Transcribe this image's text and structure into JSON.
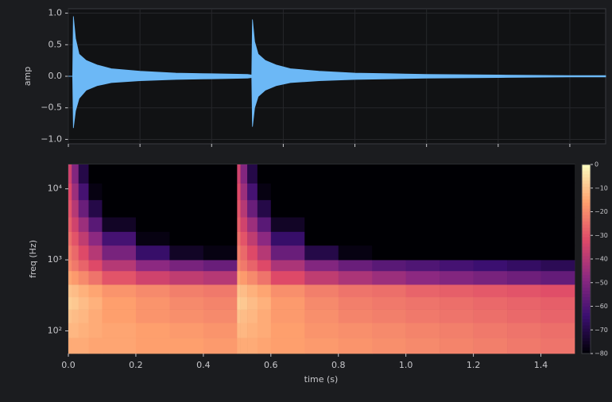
{
  "chart_data": [
    {
      "type": "area",
      "ylabel": "amp",
      "x": [
        0,
        0.012,
        0.014,
        0.02,
        0.03,
        0.05,
        0.08,
        0.12,
        0.2,
        0.3,
        0.4,
        0.5,
        0.512,
        0.514,
        0.52,
        0.53,
        0.55,
        0.58,
        0.62,
        0.7,
        0.8,
        0.9,
        1.0,
        1.2,
        1.4,
        1.5
      ],
      "series": [
        {
          "color": "#6cb8f6",
          "values": [
            0,
            0,
            0.95,
            0.6,
            0.35,
            0.25,
            0.18,
            0.12,
            0.08,
            0.05,
            0.04,
            0.03,
            0.02,
            0.9,
            0.55,
            0.35,
            0.25,
            0.18,
            0.12,
            0.08,
            0.05,
            0.04,
            0.03,
            0.02,
            0.01,
            0.01
          ]
        },
        {
          "color": "#6cb8f6",
          "values": [
            0,
            0,
            -0.82,
            -0.55,
            -0.35,
            -0.22,
            -0.15,
            -0.1,
            -0.07,
            -0.05,
            -0.04,
            -0.03,
            -0.02,
            -0.8,
            -0.5,
            -0.32,
            -0.22,
            -0.15,
            -0.1,
            -0.07,
            -0.05,
            -0.04,
            -0.03,
            -0.02,
            -0.01,
            -0.01
          ]
        }
      ],
      "xlim": [
        0,
        1.5
      ],
      "xticks": [
        0,
        0.2,
        0.4,
        0.6,
        0.8,
        1.0,
        1.2,
        1.4
      ],
      "ylim": [
        -1.07,
        1.07
      ],
      "yticks": [
        {
          "value": -1,
          "label": "−1.0"
        },
        {
          "value": -0.5,
          "label": "−0.5"
        },
        {
          "value": 0,
          "label": "0.0"
        },
        0.5,
        {
          "value": 1,
          "label": "1.0"
        }
      ],
      "grid": true
    },
    {
      "type": "heatmap",
      "xlabel": "time (s)",
      "ylabel": "freq (Hz)",
      "log_y": true,
      "colormap": "magma",
      "x_bins": [
        0,
        0.01,
        0.03,
        0.06,
        0.1,
        0.2,
        0.3,
        0.4,
        0.5,
        0.51,
        0.53,
        0.56,
        0.6,
        0.7,
        0.8,
        0.9,
        1.0,
        1.1,
        1.2,
        1.3,
        1.4,
        1.5
      ],
      "y_bins": [
        48,
        80,
        130,
        200,
        300,
        450,
        700,
        1000,
        1600,
        2500,
        4000,
        7000,
        12000,
        22050
      ],
      "z": [
        [
          -14,
          -14,
          -14,
          -15,
          -15,
          -16,
          -16,
          -17,
          -14,
          -14,
          -14,
          -15,
          -16,
          -17,
          -18,
          -19,
          -20,
          -21,
          -22,
          -23,
          -24
        ],
        [
          -12,
          -12,
          -13,
          -14,
          -15,
          -16,
          -17,
          -18,
          -12,
          -12,
          -13,
          -14,
          -16,
          -18,
          -19,
          -20,
          -21,
          -22,
          -23,
          -24,
          -25
        ],
        [
          -10,
          -11,
          -12,
          -14,
          -16,
          -18,
          -19,
          -20,
          -10,
          -11,
          -12,
          -14,
          -17,
          -19,
          -21,
          -22,
          -23,
          -24,
          -25,
          -26,
          -27
        ],
        [
          -8,
          -9,
          -11,
          -13,
          -16,
          -18,
          -20,
          -21,
          -8,
          -9,
          -11,
          -13,
          -17,
          -20,
          -22,
          -23,
          -24,
          -25,
          -26,
          -27,
          -28
        ],
        [
          -10,
          -11,
          -13,
          -15,
          -18,
          -20,
          -22,
          -23,
          -10,
          -11,
          -13,
          -15,
          -19,
          -22,
          -24,
          -25,
          -27,
          -28,
          -29,
          -30,
          -31
        ],
        [
          -15,
          -17,
          -20,
          -24,
          -30,
          -35,
          -38,
          -40,
          -15,
          -17,
          -20,
          -24,
          -32,
          -38,
          -42,
          -45,
          -48,
          -50,
          -52,
          -54,
          -56
        ],
        [
          -20,
          -23,
          -27,
          -32,
          -40,
          -48,
          -52,
          -55,
          -20,
          -23,
          -27,
          -32,
          -42,
          -50,
          -55,
          -58,
          -60,
          -62,
          -64,
          -66,
          -68
        ],
        [
          -22,
          -26,
          -32,
          -40,
          -52,
          -65,
          -75,
          -78,
          -22,
          -26,
          -32,
          -40,
          -55,
          -70,
          -78,
          -80,
          -80,
          -80,
          -80,
          -80,
          -80
        ],
        [
          -25,
          -30,
          -38,
          -48,
          -62,
          -78,
          -80,
          -80,
          -25,
          -30,
          -38,
          -48,
          -65,
          -80,
          -80,
          -80,
          -80,
          -80,
          -80,
          -80,
          -80
        ],
        [
          -28,
          -35,
          -45,
          -58,
          -75,
          -80,
          -80,
          -80,
          -28,
          -35,
          -45,
          -58,
          -75,
          -80,
          -80,
          -80,
          -80,
          -80,
          -80,
          -80,
          -80
        ],
        [
          -30,
          -40,
          -55,
          -70,
          -80,
          -80,
          -80,
          -80,
          -30,
          -40,
          -55,
          -70,
          -80,
          -80,
          -80,
          -80,
          -80,
          -80,
          -80,
          -80,
          -80
        ],
        [
          -32,
          -45,
          -62,
          -78,
          -80,
          -80,
          -80,
          -80,
          -32,
          -45,
          -62,
          -78,
          -80,
          -80,
          -80,
          -80,
          -80,
          -80,
          -80,
          -80,
          -80
        ],
        [
          -35,
          -50,
          -70,
          -80,
          -80,
          -80,
          -80,
          -80,
          -35,
          -50,
          -70,
          -80,
          -80,
          -80,
          -80,
          -80,
          -80,
          -80,
          -80,
          -80,
          -80
        ]
      ],
      "xlim": [
        0,
        1.5
      ],
      "xticks": [
        {
          "value": 0,
          "label": "0.0"
        },
        0.2,
        0.4,
        0.6,
        0.8,
        {
          "value": 1,
          "label": "1.0"
        },
        1.2,
        1.4
      ],
      "ylim": [
        48,
        22050
      ],
      "yticks": [
        {
          "value": 100,
          "label": "10²"
        },
        {
          "value": 1000,
          "label": "10³"
        },
        {
          "value": 10000,
          "label": "10⁴"
        }
      ],
      "colorbar": {
        "lim": [
          -80,
          0
        ],
        "ticks": [
          0,
          {
            "value": -10,
            "label": "−10"
          },
          {
            "value": -20,
            "label": "−20"
          },
          {
            "value": -30,
            "label": "−30"
          },
          {
            "value": -40,
            "label": "−40"
          },
          {
            "value": -50,
            "label": "−50"
          },
          {
            "value": -60,
            "label": "−60"
          },
          {
            "value": -70,
            "label": "−70"
          },
          {
            "value": -80,
            "label": "−80"
          }
        ]
      }
    }
  ]
}
